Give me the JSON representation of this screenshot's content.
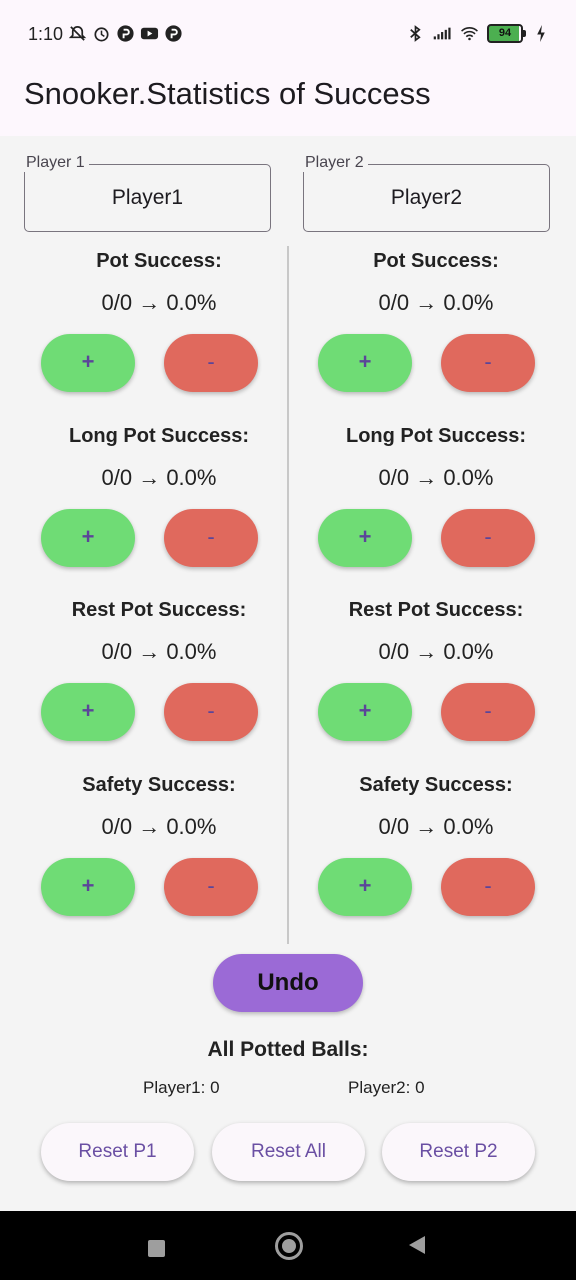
{
  "status_bar": {
    "time": "1:10",
    "battery": "94",
    "icons_left": [
      "mute-icon",
      "alarm-icon",
      "app-p-icon",
      "youtube-icon",
      "app-p-icon"
    ],
    "icons_right": [
      "bluetooth-icon",
      "signal-icon",
      "wifi-icon",
      "battery-icon",
      "charging-icon"
    ]
  },
  "app": {
    "title": "Snooker.Statistics of Success"
  },
  "players": [
    {
      "label": "Player 1",
      "name": "Player1",
      "stats": [
        {
          "title": "Pot Success:",
          "value": "0/0 → 0.0%"
        },
        {
          "title": "Long Pot Success:",
          "value": "0/0 → 0.0%"
        },
        {
          "title": "Rest Pot Success:",
          "value": "0/0 → 0.0%"
        },
        {
          "title": "Safety Success:",
          "value": "0/0 → 0.0%"
        }
      ]
    },
    {
      "label": "Player 2",
      "name": "Player2",
      "stats": [
        {
          "title": "Pot Success:",
          "value": "0/0 → 0.0%"
        },
        {
          "title": "Long Pot Success:",
          "value": "0/0 → 0.0%"
        },
        {
          "title": "Rest Pot Success:",
          "value": "0/0 → 0.0%"
        },
        {
          "title": "Safety Success:",
          "value": "0/0 → 0.0%"
        }
      ]
    }
  ],
  "buttons": {
    "plus": "+",
    "minus": "-"
  },
  "undo_label": "Undo",
  "potted": {
    "title": "All Potted Balls:",
    "p1": "Player1: 0",
    "p2": "Player2: 0"
  },
  "reset": {
    "p1": "Reset P1",
    "all": "Reset All",
    "p2": "Reset P2"
  },
  "colors": {
    "plus": "#6fdc75",
    "minus": "#e0695d",
    "undo": "#9b6ad6",
    "accent_text": "#6a4fa3"
  }
}
